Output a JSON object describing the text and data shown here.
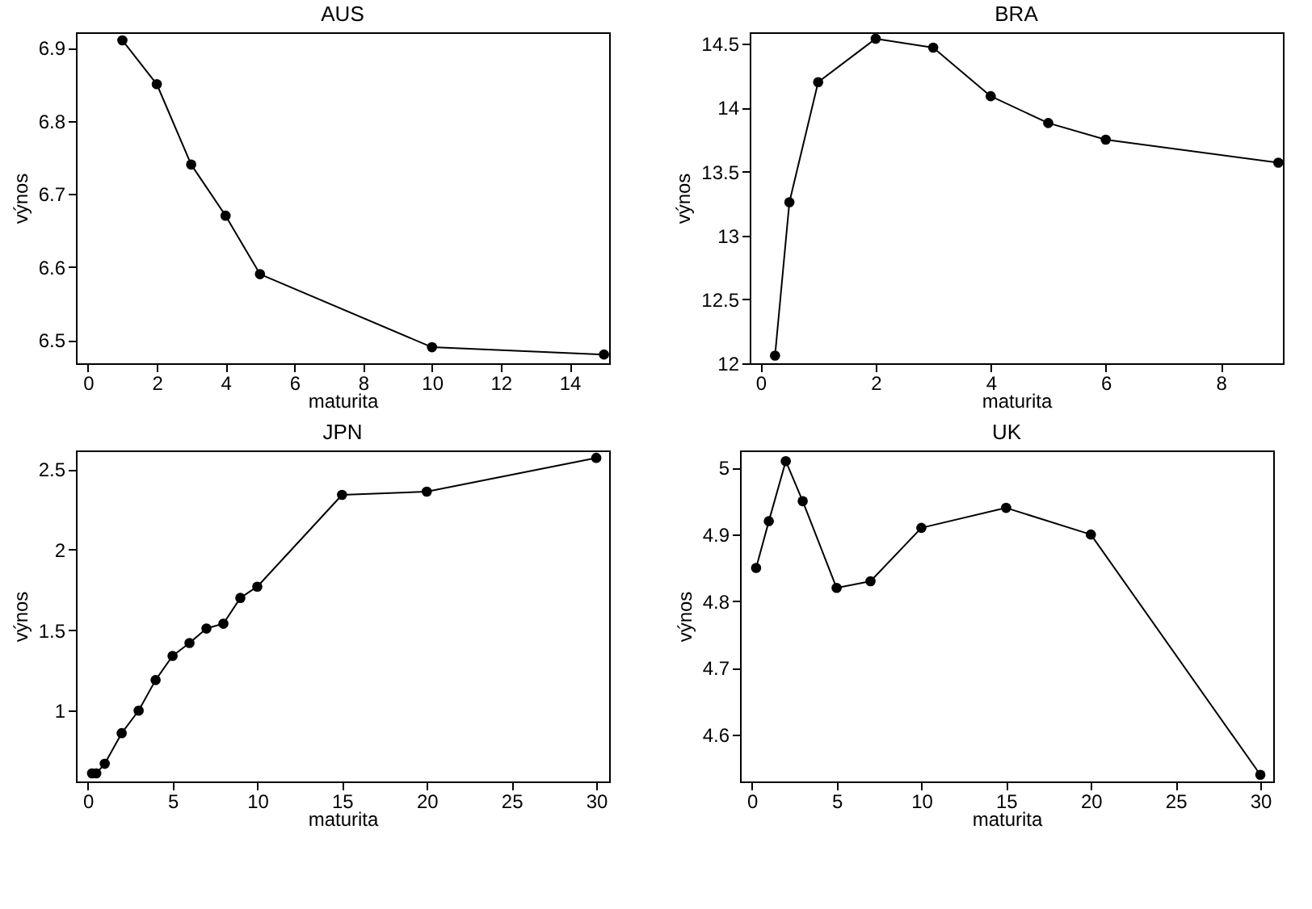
{
  "chart_data": [
    {
      "type": "line",
      "title": "AUS",
      "xlabel": "maturita",
      "ylabel": "výnos",
      "x": [
        1,
        2,
        3,
        4,
        5,
        10,
        15
      ],
      "series": [
        {
          "color": "#000000",
          "values": [
            6.91,
            6.85,
            6.74,
            6.67,
            6.59,
            6.49,
            6.48
          ]
        }
      ],
      "xlim": [
        -0.35,
        15.15
      ],
      "ylim": [
        6.468,
        6.921
      ],
      "xticks": [
        0,
        2,
        4,
        6,
        8,
        10,
        12,
        14
      ],
      "yticks": [
        6.5,
        6.6,
        6.7,
        6.8,
        6.9
      ],
      "marker": "circle",
      "line_style": "solid",
      "grid": false
    },
    {
      "type": "line",
      "title": "BRA",
      "xlabel": "maturita",
      "ylabel": "výnos",
      "x": [
        0.25,
        0.5,
        1,
        2,
        3,
        4,
        5,
        6,
        9
      ],
      "series": [
        {
          "color": "#000000",
          "values": [
            12.06,
            13.26,
            14.2,
            14.54,
            14.47,
            14.09,
            13.88,
            13.75,
            13.57
          ]
        }
      ],
      "xlim": [
        -0.19,
        9.08
      ],
      "ylim": [
        12.0,
        14.59
      ],
      "xticks": [
        0,
        2,
        4,
        6,
        8
      ],
      "yticks": [
        12,
        12.5,
        13,
        13.5,
        14,
        14.5
      ],
      "marker": "circle",
      "line_style": "solid",
      "grid": false
    },
    {
      "type": "line",
      "title": "JPN",
      "xlabel": "maturita",
      "ylabel": "výnos",
      "x": [
        0.25,
        0.5,
        1,
        2,
        3,
        4,
        5,
        6,
        7,
        8,
        9,
        10,
        15,
        20,
        30
      ],
      "series": [
        {
          "color": "#000000",
          "values": [
            0.61,
            0.61,
            0.67,
            0.86,
            1.0,
            1.19,
            1.34,
            1.42,
            1.51,
            1.54,
            1.7,
            1.77,
            2.34,
            2.36,
            2.57
          ]
        }
      ],
      "xlim": [
        -0.7,
        30.76
      ],
      "ylim": [
        0.56,
        2.616
      ],
      "xticks": [
        0,
        5,
        10,
        15,
        20,
        25,
        30
      ],
      "yticks": [
        1,
        1.5,
        2,
        2.5
      ],
      "marker": "circle",
      "line_style": "solid",
      "grid": false
    },
    {
      "type": "line",
      "title": "UK",
      "xlabel": "maturita",
      "ylabel": "výnos",
      "x": [
        0.25,
        1,
        2,
        3,
        5,
        7,
        10,
        15,
        20,
        30
      ],
      "series": [
        {
          "color": "#000000",
          "values": [
            4.85,
            4.92,
            5.01,
            4.95,
            4.82,
            4.83,
            4.91,
            4.94,
            4.9,
            4.54
          ]
        }
      ],
      "xlim": [
        -0.7,
        30.76
      ],
      "ylim": [
        4.53,
        5.026
      ],
      "xticks": [
        0,
        5,
        10,
        15,
        20,
        25,
        30
      ],
      "yticks": [
        4.6,
        4.7,
        4.8,
        4.9,
        5
      ],
      "marker": "circle",
      "line_style": "solid",
      "grid": false
    }
  ]
}
